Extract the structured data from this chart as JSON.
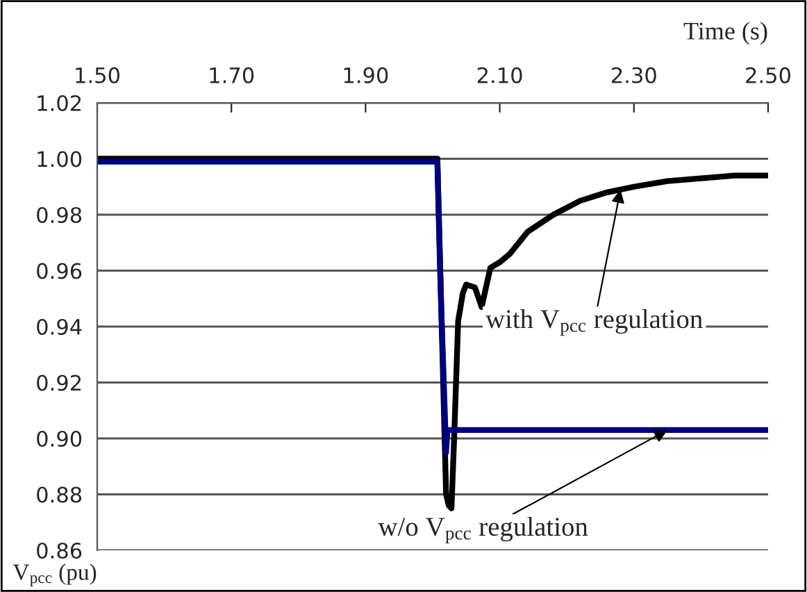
{
  "chart_data": {
    "type": "line",
    "xlabel": "Time (s)",
    "ylabel": "V$_{pcc}$ (pu)",
    "xlim": [
      1.5,
      2.5
    ],
    "xticks": [
      {
        "value": 1.5,
        "label": "1.50"
      },
      {
        "value": 1.7,
        "label": "1.70"
      },
      {
        "value": 1.9,
        "label": "1.90"
      },
      {
        "value": 2.1,
        "label": "2.10"
      },
      {
        "value": 2.3,
        "label": "2.30"
      },
      {
        "value": 2.5,
        "label": "2.50"
      }
    ],
    "ylim": [
      0.86,
      1.02
    ],
    "yticks": [
      {
        "value": 0.86,
        "label": "0.86"
      },
      {
        "value": 0.88,
        "label": "0.88"
      },
      {
        "value": 0.9,
        "label": "0.90"
      },
      {
        "value": 0.92,
        "label": "0.92"
      },
      {
        "value": 0.94,
        "label": "0.94"
      },
      {
        "value": 0.96,
        "label": "0.96"
      },
      {
        "value": 0.98,
        "label": "0.98"
      },
      {
        "value": 1.0,
        "label": "1.00"
      },
      {
        "value": 1.02,
        "label": "1.02"
      }
    ],
    "grid": "y",
    "legend": false,
    "line_style": "solid",
    "marker": "none",
    "series": [
      {
        "color": "#000000",
        "x": [
          1.5,
          2.007,
          2.013,
          2.02,
          2.024,
          2.028,
          2.032,
          2.038,
          2.045,
          2.05,
          2.063,
          2.073,
          2.086,
          2.1,
          2.115,
          2.142,
          2.18,
          2.22,
          2.26,
          2.3,
          2.35,
          2.4,
          2.45,
          2.5
        ],
        "values": [
          1.0,
          1.0,
          0.945,
          0.88,
          0.876,
          0.875,
          0.9,
          0.942,
          0.952,
          0.955,
          0.954,
          0.947,
          0.961,
          0.963,
          0.966,
          0.974,
          0.98,
          0.985,
          0.988,
          0.99,
          0.992,
          0.993,
          0.994,
          0.994
        ]
      },
      {
        "color": "#000080",
        "x": [
          1.5,
          2.007,
          2.011,
          2.013,
          2.018,
          2.02,
          2.022,
          2.03,
          2.5
        ],
        "values": [
          0.999,
          0.999,
          0.961,
          0.945,
          0.91,
          0.895,
          0.903,
          0.903,
          0.903
        ]
      }
    ],
    "annotations": [
      {
        "text": "with V$_{pcc}$ regulation",
        "x": 2.28,
        "y": 0.989
      },
      {
        "text": "w/o V$_{pcc}$ regulation",
        "x": 2.35,
        "y": 0.903
      }
    ]
  }
}
